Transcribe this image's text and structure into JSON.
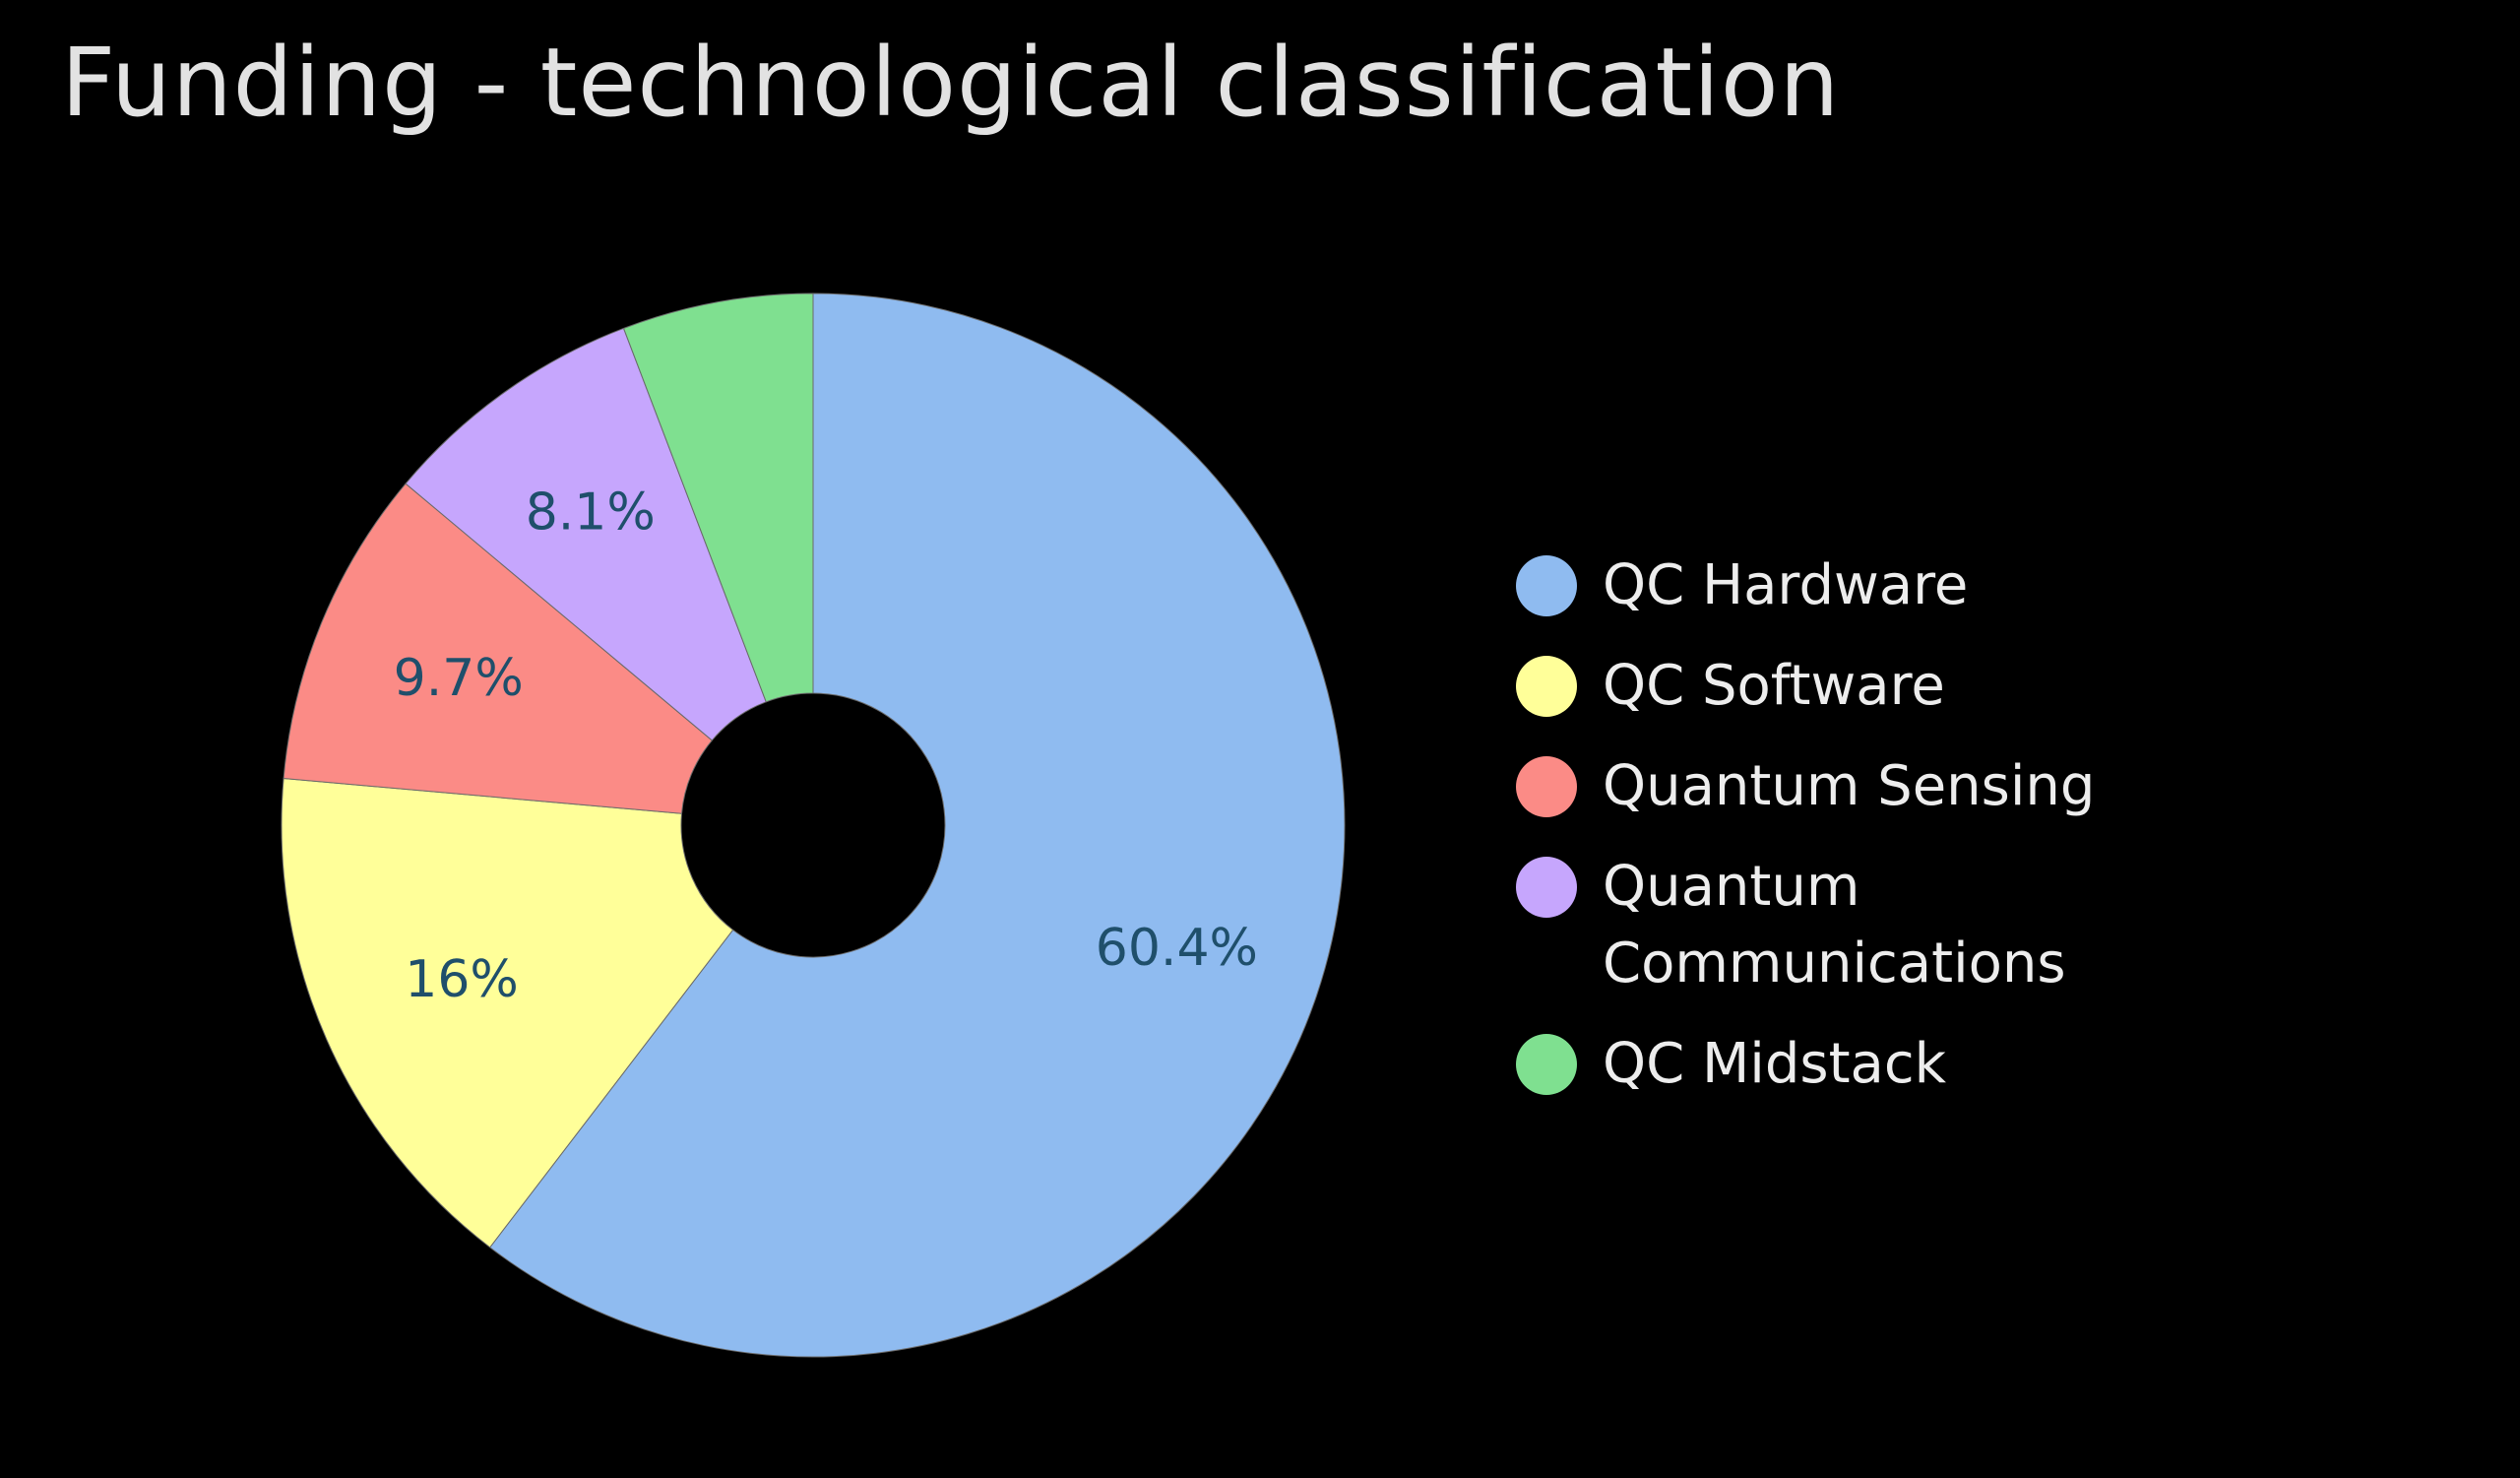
{
  "chart_data": {
    "type": "pie",
    "title": "Funding - technological classification",
    "categories": [
      "QC Hardware",
      "QC Software",
      "Quantum Sensing",
      "Quantum Communications",
      "QC Midstack"
    ],
    "values": [
      60.4,
      16,
      9.7,
      8.1,
      5.8
    ],
    "data_labels": [
      "60.4%",
      "16%",
      "9.7%",
      "8.1%",
      ""
    ],
    "colors": [
      "#8fbbf0",
      "#ffff99",
      "#fb8b86",
      "#c6a6fd",
      "#7fe090"
    ],
    "label_color": "#1f4f6b",
    "donut": true,
    "legend": "right"
  }
}
